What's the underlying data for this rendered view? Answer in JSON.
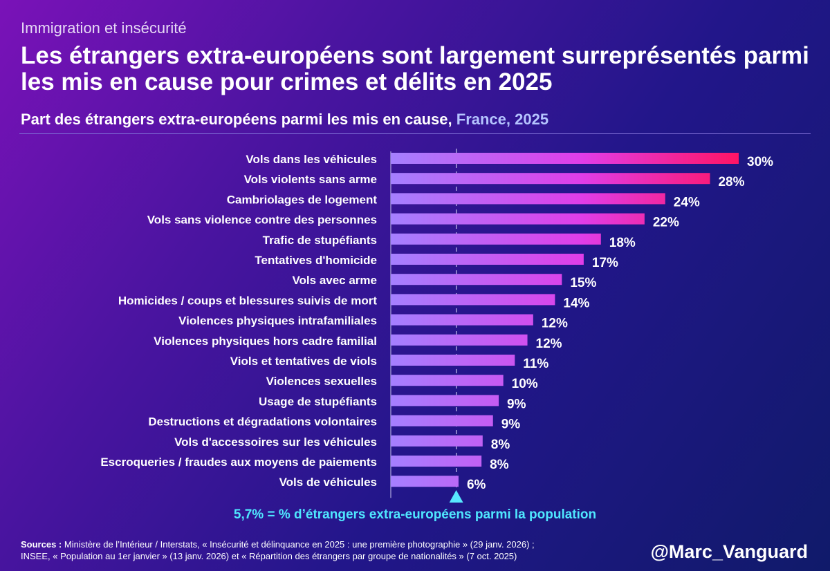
{
  "header": {
    "kicker": "Immigration et insécurité",
    "title": "Les étrangers extra-européens sont largement surreprésentés parmi les mis en cause pour crimes et délits en 2025",
    "subtitle_main": "Part des étrangers extra-européens parmi les mis en cause,",
    "subtitle_highlight": "France, 2025"
  },
  "chart_data": {
    "type": "bar",
    "orientation": "horizontal",
    "title": "Part des étrangers extra-européens parmi les mis en cause, France, 2025",
    "categories": [
      "Vols dans les véhicules",
      "Vols violents sans arme",
      "Cambriolages de logement",
      "Vols sans violence contre des personnes",
      "Trafic de stupéfiants",
      "Tentatives d'homicide",
      "Vols avec arme",
      "Homicides / coups et blessures suivis de mort",
      "Violences physiques intrafamiliales",
      "Violences physiques hors cadre familial",
      "Viols et tentatives de viols",
      "Violences sexuelles",
      "Usage de stupéfiants",
      "Destructions et dégradations volontaires",
      "Vols d'accessoires sur les véhicules",
      "Escroqueries / fraudes aux moyens de paiements",
      "Vols de véhicules"
    ],
    "values": [
      30,
      28,
      24,
      22,
      18,
      17,
      15,
      14,
      12,
      12,
      11,
      10,
      9,
      9,
      8,
      8,
      6
    ],
    "precise_values": [
      30.3,
      27.8,
      23.9,
      22.1,
      18.3,
      16.8,
      14.9,
      14.3,
      12.4,
      11.9,
      10.8,
      9.8,
      9.4,
      8.9,
      8.0,
      7.9,
      5.9
    ],
    "data_labels": [
      "30%",
      "28%",
      "24%",
      "22%",
      "18%",
      "17%",
      "15%",
      "14%",
      "12%",
      "12%",
      "11%",
      "10%",
      "9%",
      "9%",
      "8%",
      "8%",
      "6%"
    ],
    "xlim": [
      0,
      30.3
    ],
    "reference_line": {
      "value": 5.7
    },
    "colors": {
      "low": "#a580ff",
      "mid": "#e03de8",
      "high": "#ff1464",
      "reference": "#58e8ff"
    }
  },
  "footer": {
    "population_note": "5,7% = % d’étrangers extra-européens parmi la population",
    "sources_label": "Sources :",
    "sources_line1": "Ministère de l’Intérieur / Interstats, « Insécurité et délinquance en 2025 : une première photographie » (29 janv. 2026) ;",
    "sources_line2": "INSEE, « Population au 1er janvier » (13 janv. 2026) et « Répartition des étrangers par groupe de nationalités » (7 oct. 2025)",
    "handle": "@Marc_Vanguard"
  }
}
